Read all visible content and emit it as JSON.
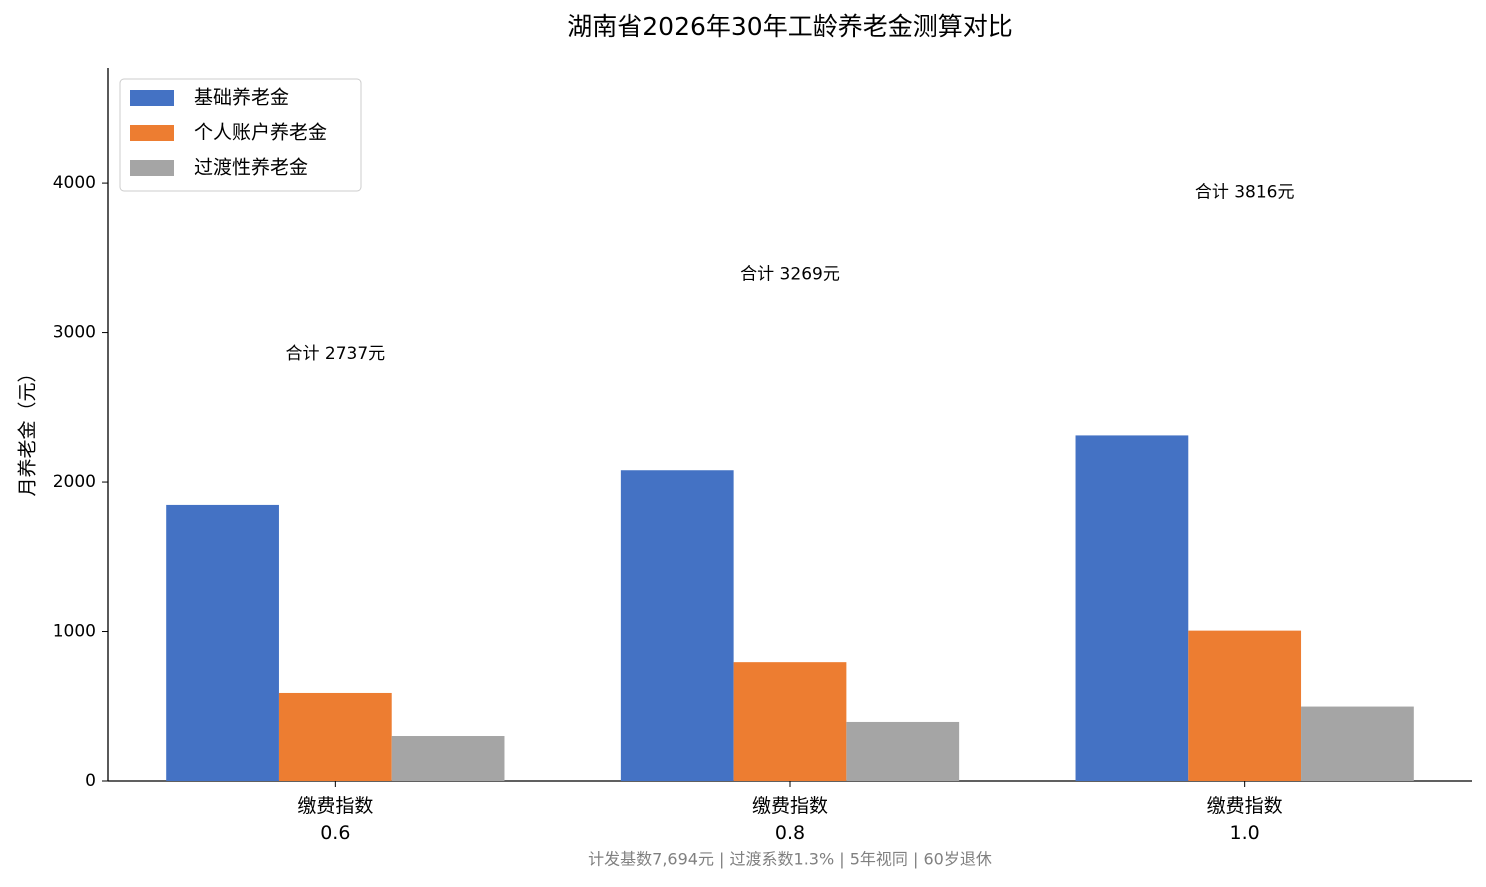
{
  "chart_data": {
    "type": "bar",
    "title": "湖南省2026年30年工龄养老金测算对比",
    "y_label": "月养老金（元）",
    "categories": [
      "缴费指数\n0.6",
      "缴费指数\n0.8",
      "缴费指数\n1.0"
    ],
    "series": [
      {
        "name": "基础养老金",
        "color": "#4472c4",
        "values": [
          1847,
          2079,
          2312
        ]
      },
      {
        "name": "个人账户养老金",
        "color": "#ed7d31",
        "values": [
          589,
          795,
          1006
        ]
      },
      {
        "name": "过渡性养老金",
        "color": "#a5a5a5",
        "values": [
          301,
          395,
          498
        ]
      }
    ],
    "annotations": [
      {
        "text": "合计 2737元",
        "value": 2737
      },
      {
        "text": "合计 3269元",
        "value": 3269
      },
      {
        "text": "合计 3816元",
        "value": 3816
      }
    ],
    "note": "计发基数7,694元 | 过渡系数1.3% | 5年视同 | 60岁退休",
    "ylim": [
      0,
      4770
    ],
    "yticks": [
      0,
      1000,
      2000,
      3000,
      4000
    ],
    "legend": "upper-left",
    "grid": false
  }
}
